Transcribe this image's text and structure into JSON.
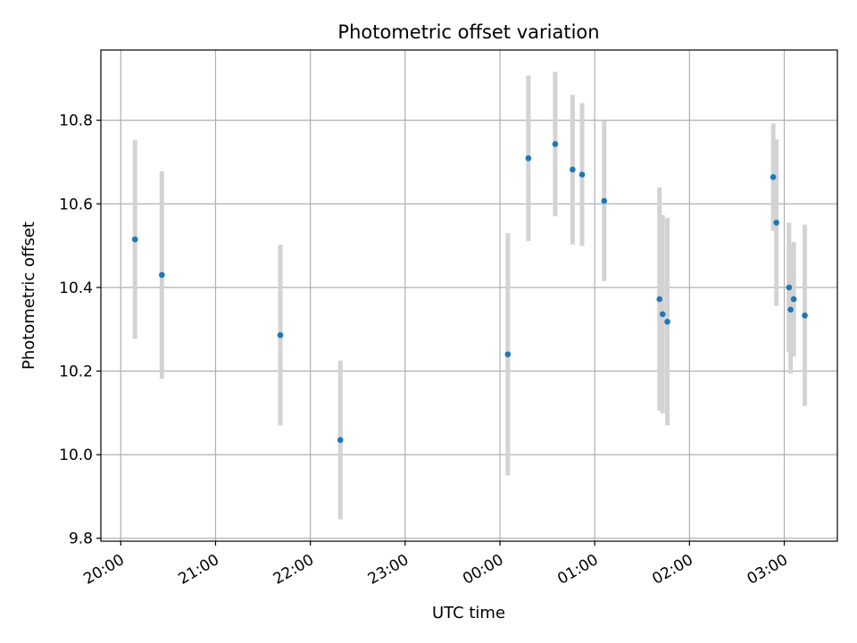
{
  "chart_data": {
    "type": "scatter",
    "title": "Photometric offset variation",
    "xlabel": "UTC time",
    "ylabel": "Photometric offset",
    "x_tick_labels": [
      "20:00",
      "21:00",
      "22:00",
      "23:00",
      "00:00",
      "01:00",
      "02:00",
      "03:00"
    ],
    "y_tick_labels": [
      "9.8",
      "10.0",
      "10.2",
      "10.4",
      "10.6",
      "10.8"
    ],
    "y_ticks": [
      9.8,
      10.0,
      10.2,
      10.4,
      10.6,
      10.8
    ],
    "xlim_hours_after_20": [
      -0.21,
      7.56
    ],
    "ylim": [
      9.793,
      10.968
    ],
    "grid": true,
    "marker_color": "#1f77b4",
    "errorbar_color": "#d3d3d3",
    "points": [
      {
        "t": "20:09",
        "y": 10.515,
        "yerr": 0.238
      },
      {
        "t": "20:26",
        "y": 10.43,
        "yerr": 0.248
      },
      {
        "t": "21:41",
        "y": 10.286,
        "yerr": 0.216
      },
      {
        "t": "22:19",
        "y": 10.035,
        "yerr": 0.19
      },
      {
        "t": "00:05",
        "y": 10.24,
        "yerr": 0.29
      },
      {
        "t": "00:18",
        "y": 10.709,
        "yerr": 0.198
      },
      {
        "t": "00:35",
        "y": 10.743,
        "yerr": 0.173
      },
      {
        "t": "00:46",
        "y": 10.682,
        "yerr": 0.179
      },
      {
        "t": "00:52",
        "y": 10.67,
        "yerr": 0.171
      },
      {
        "t": "01:06",
        "y": 10.607,
        "yerr": 0.192
      },
      {
        "t": "01:41",
        "y": 10.372,
        "yerr": 0.267
      },
      {
        "t": "01:43",
        "y": 10.336,
        "yerr": 0.237
      },
      {
        "t": "01:46",
        "y": 10.318,
        "yerr": 0.248
      },
      {
        "t": "02:53",
        "y": 10.664,
        "yerr": 0.128
      },
      {
        "t": "02:55",
        "y": 10.555,
        "yerr": 0.199
      },
      {
        "t": "03:03",
        "y": 10.4,
        "yerr": 0.155
      },
      {
        "t": "03:04",
        "y": 10.347,
        "yerr": 0.153
      },
      {
        "t": "03:06",
        "y": 10.372,
        "yerr": 0.137
      },
      {
        "t": "03:13",
        "y": 10.333,
        "yerr": 0.217
      }
    ]
  }
}
